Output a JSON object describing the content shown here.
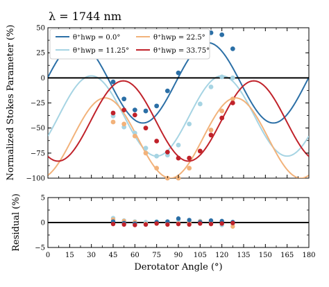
{
  "chart_data": [
    {
      "type": "line",
      "title": "λ = 1744 nm",
      "ylabel": "Normalized Stokes Parameter (%)",
      "xlim": [
        0,
        180
      ],
      "ylim": [
        -100,
        50
      ],
      "x_ticks": [
        "0",
        "15",
        "30",
        "45",
        "60",
        "75",
        "90",
        "105",
        "120",
        "135",
        "150",
        "165",
        "180"
      ],
      "y_ticks": [
        "50",
        "25",
        "0",
        "−25",
        "−50",
        "−75",
        "−100"
      ],
      "legend_position": "top",
      "series": [
        {
          "name": "θ⁺hwp = 0.0°",
          "color": "#2b6fa6",
          "model": {
            "offset": -5,
            "amplitude": 40,
            "phase": 20.5
          },
          "points": [
            [
              45,
              -4
            ],
            [
              52.5,
              -21
            ],
            [
              60,
              -32
            ],
            [
              67.5,
              -33
            ],
            [
              75,
              -28
            ],
            [
              82.5,
              -13
            ],
            [
              90,
              5
            ],
            [
              97.5,
              24
            ],
            [
              105,
              38
            ],
            [
              112.5,
              45
            ],
            [
              120,
              43
            ],
            [
              127.5,
              29
            ]
          ]
        },
        {
          "name": "θ⁺hwp = 11.25°",
          "color": "#a6d4e3",
          "model": {
            "offset": -38,
            "amplitude": 40,
            "phase": 30
          },
          "points": [
            [
              45,
              -38
            ],
            [
              52.5,
              -49
            ],
            [
              60,
              -55
            ],
            [
              67.5,
              -70
            ],
            [
              75,
              -78
            ],
            [
              82.5,
              -77
            ],
            [
              90,
              -67
            ],
            [
              97.5,
              -46
            ],
            [
              105,
              -26
            ],
            [
              112.5,
              -9
            ],
            [
              120,
              1
            ],
            [
              127.5,
              0
            ]
          ]
        },
        {
          "name": "θ⁺hwp = 22.5°",
          "color": "#f2b27a",
          "model": {
            "offset": -60,
            "amplitude": 40,
            "phase": 39.5
          },
          "points": [
            [
              45,
              -44
            ],
            [
              52.5,
              -46
            ],
            [
              60,
              -58
            ],
            [
              67.5,
              -75
            ],
            [
              75,
              -90
            ],
            [
              82.5,
              -100
            ],
            [
              90,
              -100
            ],
            [
              97.5,
              -90
            ],
            [
              105,
              -73
            ],
            [
              112.5,
              -52
            ],
            [
              120,
              -33
            ],
            [
              127.5,
              -21
            ]
          ]
        },
        {
          "name": "θ⁺hwp = 33.75°",
          "color": "#c0222a",
          "model": {
            "offset": -43,
            "amplitude": 40,
            "phase": 52
          },
          "points": [
            [
              45,
              -35
            ],
            [
              52.5,
              -32
            ],
            [
              60,
              -37
            ],
            [
              67.5,
              -50
            ],
            [
              75,
              -63
            ],
            [
              82.5,
              -74
            ],
            [
              90,
              -80
            ],
            [
              97.5,
              -80
            ],
            [
              105,
              -73
            ],
            [
              112.5,
              -57
            ],
            [
              120,
              -40
            ],
            [
              127.5,
              -25
            ]
          ]
        }
      ]
    },
    {
      "type": "scatter",
      "ylabel": "Residual (%)",
      "xlabel": "Derotator Angle (°)",
      "xlim": [
        0,
        180
      ],
      "ylim": [
        -5,
        5
      ],
      "y_ticks": [
        "5",
        "0",
        "−5"
      ],
      "series": [
        {
          "name": "θ⁺hwp = 11.25°",
          "color": "#a6d4e3",
          "residuals": [
            [
              45,
              0.9
            ],
            [
              52.5,
              0.4
            ],
            [
              60,
              0.2
            ],
            [
              67.5,
              0.1
            ],
            [
              75,
              0.2
            ],
            [
              82.5,
              0.1
            ],
            [
              90,
              0.5
            ],
            [
              97.5,
              0.2
            ],
            [
              105,
              0.3
            ],
            [
              112.5,
              0.2
            ],
            [
              120,
              -0.5
            ],
            [
              127.5,
              -0.3
            ]
          ]
        },
        {
          "name": "θ⁺hwp = 22.5°",
          "color": "#f2b27a",
          "residuals": [
            [
              45,
              0.6
            ],
            [
              52.5,
              0.3
            ],
            [
              60,
              0.1
            ],
            [
              67.5,
              -0.3
            ],
            [
              75,
              -0.2
            ],
            [
              82.5,
              0.1
            ],
            [
              90,
              -0.2
            ],
            [
              97.5,
              0.0
            ],
            [
              105,
              0.2
            ],
            [
              112.5,
              0.2
            ],
            [
              120,
              -0.2
            ],
            [
              127.5,
              -0.8
            ]
          ]
        },
        {
          "name": "θ⁺hwp = 0.0°",
          "color": "#2b6fa6",
          "residuals": [
            [
              45,
              0.2
            ],
            [
              52.5,
              -0.1
            ],
            [
              60,
              -0.2
            ],
            [
              67.5,
              -0.4
            ],
            [
              75,
              0.1
            ],
            [
              82.5,
              0.2
            ],
            [
              90,
              0.8
            ],
            [
              97.5,
              0.5
            ],
            [
              105,
              0.1
            ],
            [
              112.5,
              0.4
            ],
            [
              120,
              0.3
            ],
            [
              127.5,
              0.1
            ]
          ]
        },
        {
          "name": "θ⁺hwp = 33.75°",
          "color": "#c0222a",
          "residuals": [
            [
              45,
              -0.3
            ],
            [
              52.5,
              -0.4
            ],
            [
              60,
              -0.5
            ],
            [
              67.5,
              -0.4
            ],
            [
              75,
              -0.2
            ],
            [
              82.5,
              -0.4
            ],
            [
              90,
              -0.3
            ],
            [
              97.5,
              -0.4
            ],
            [
              105,
              -0.2
            ],
            [
              112.5,
              -0.3
            ],
            [
              120,
              -0.2
            ],
            [
              127.5,
              -0.1
            ]
          ]
        }
      ]
    }
  ]
}
